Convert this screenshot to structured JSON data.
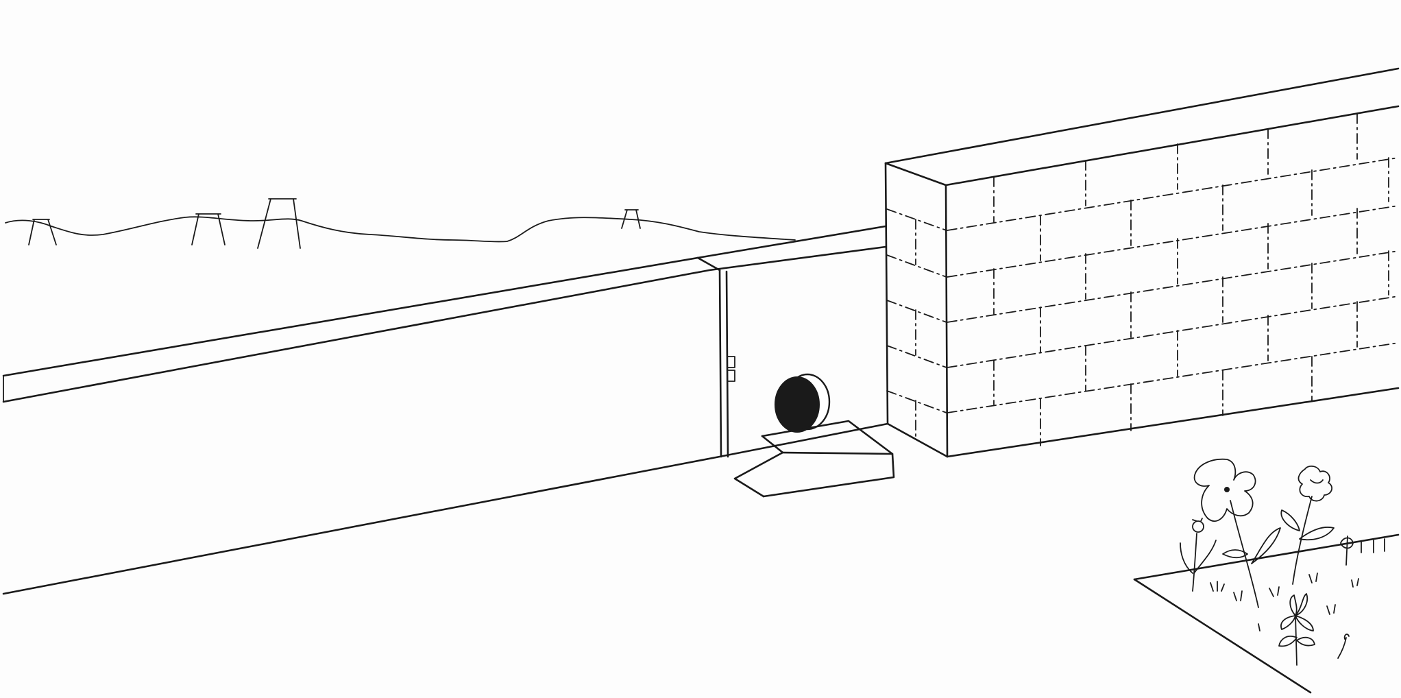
{
  "scene": {
    "style": "pen-and-ink line drawing on white paper",
    "colors": {
      "ink": "#1a1a1a",
      "paper": "#fdfdfd",
      "ball": "#1a1a1a"
    },
    "elements": [
      "hill-skyline",
      "distant-towers",
      "long-plain-wall",
      "wall-joint",
      "door-latch",
      "black-ball",
      "ramp",
      "brick-wall",
      "flower-bed",
      "flowers"
    ]
  }
}
